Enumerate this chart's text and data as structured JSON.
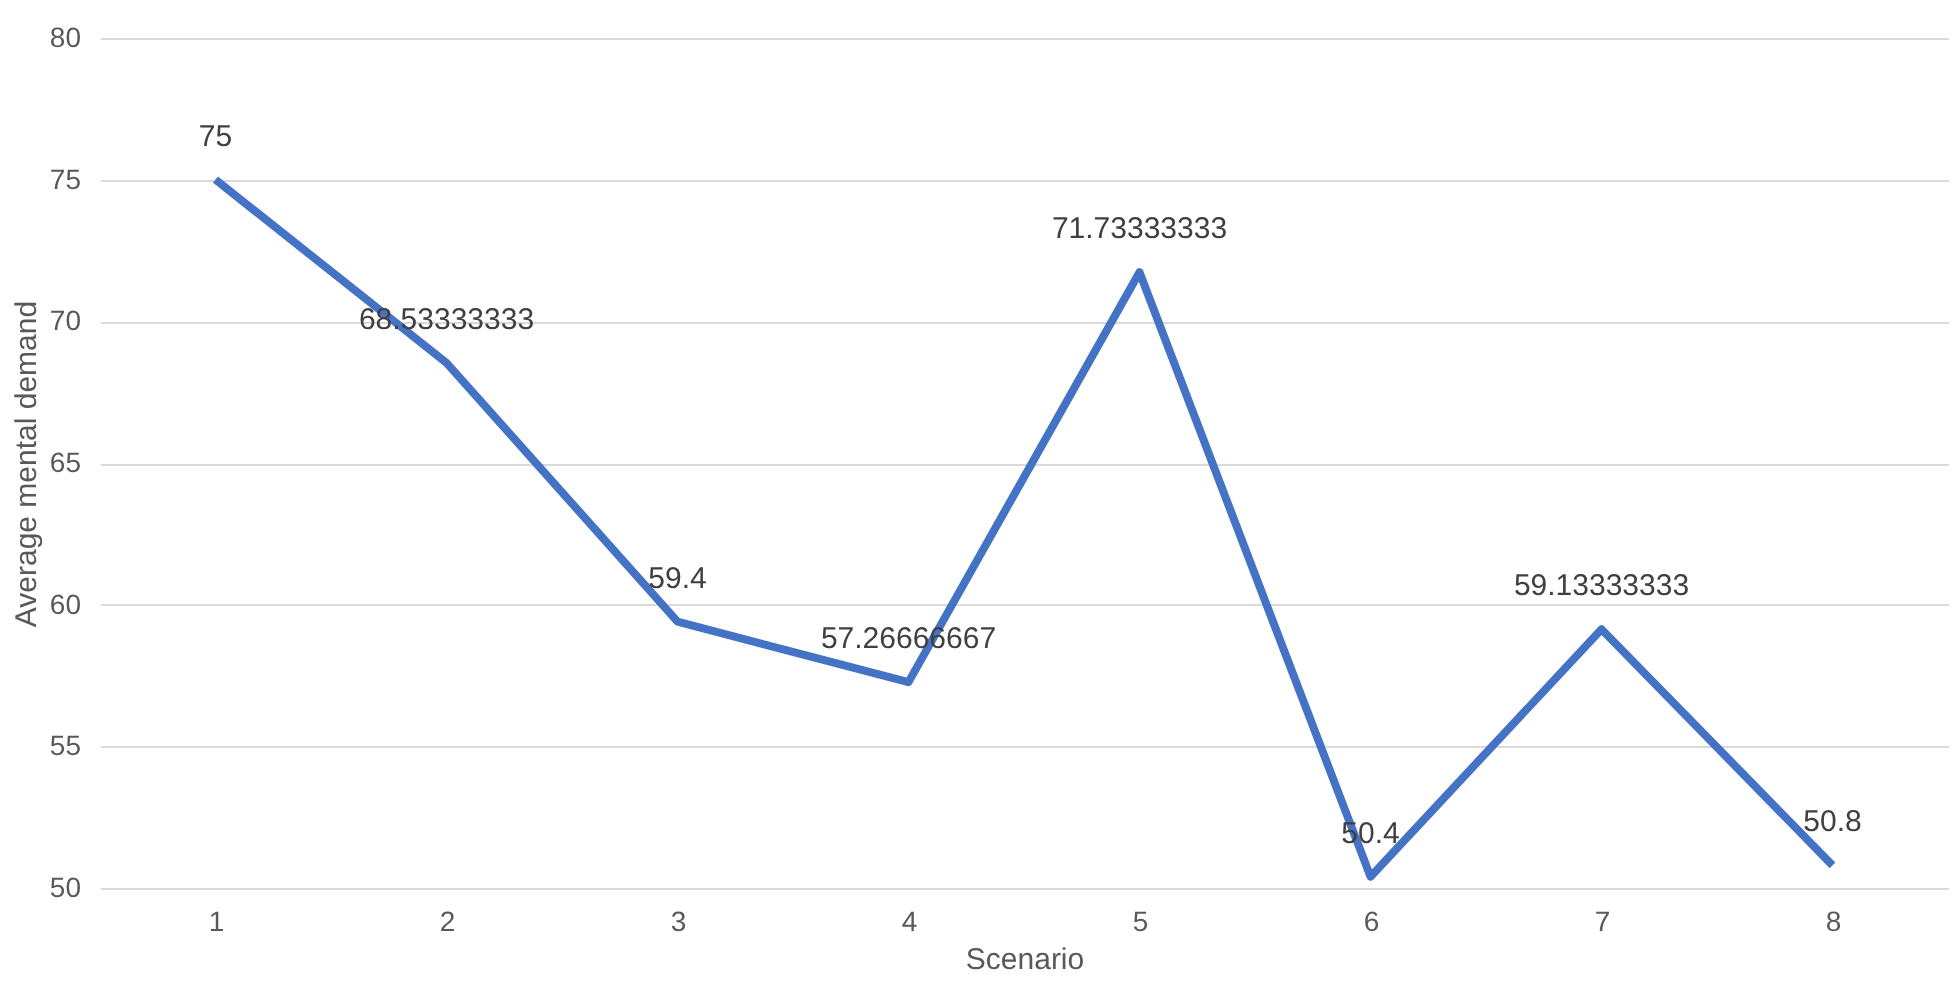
{
  "chart_data": {
    "type": "line",
    "xlabel": "Scenario",
    "ylabel": "Average mental demand",
    "categories": [
      "1",
      "2",
      "3",
      "4",
      "5",
      "6",
      "7",
      "8"
    ],
    "series": [
      {
        "color": "#4472c4",
        "values": [
          75,
          68.53333333,
          59.4,
          57.26666667,
          71.73333333,
          50.4,
          59.13333333,
          50.8
        ]
      }
    ],
    "ylim": [
      50,
      80
    ],
    "yticks": [
      50,
      55,
      60,
      65,
      70,
      75,
      80
    ],
    "grid": "y",
    "data_labels": true,
    "marker": "none",
    "line_style": "solid"
  }
}
